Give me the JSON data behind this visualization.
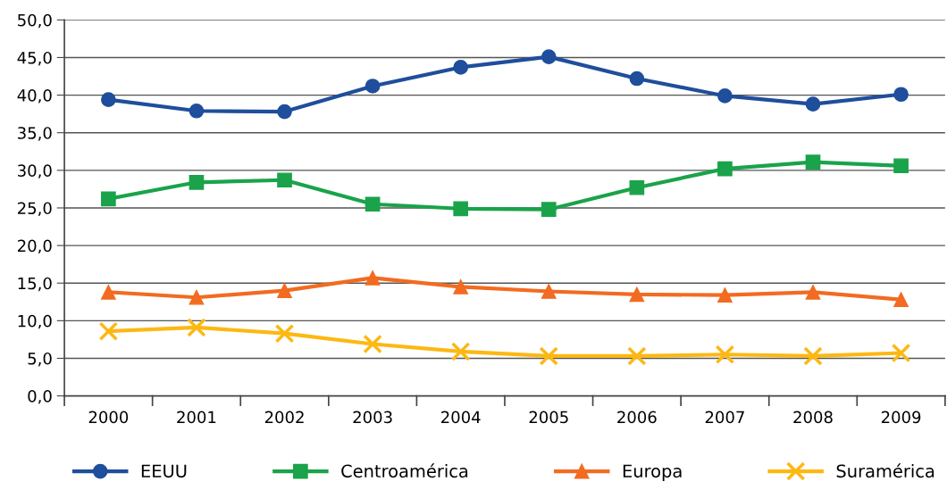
{
  "chart_data": {
    "type": "line",
    "categories": [
      "2000",
      "2001",
      "2002",
      "2003",
      "2004",
      "2005",
      "2006",
      "2007",
      "2008",
      "2009"
    ],
    "series": [
      {
        "name": "EEUU",
        "color": "#1f4e9c",
        "marker": "circle",
        "values": [
          39.4,
          37.9,
          37.8,
          41.2,
          43.7,
          45.1,
          42.2,
          39.9,
          38.8,
          40.1
        ]
      },
      {
        "name": "Centroamérica",
        "color": "#1aa34a",
        "marker": "square",
        "values": [
          26.2,
          28.4,
          28.7,
          25.5,
          24.9,
          24.8,
          27.7,
          30.2,
          31.1,
          30.6
        ]
      },
      {
        "name": "Europa",
        "color": "#f26b21",
        "marker": "triangle",
        "values": [
          13.8,
          13.1,
          14.0,
          15.7,
          14.5,
          13.9,
          13.5,
          13.4,
          13.8,
          12.8
        ]
      },
      {
        "name": "Suramérica",
        "color": "#fcb813",
        "marker": "cross",
        "values": [
          8.6,
          9.1,
          8.3,
          6.9,
          5.9,
          5.3,
          5.3,
          5.5,
          5.3,
          5.7
        ]
      }
    ],
    "ylim": [
      0,
      50
    ],
    "yticks": [
      {
        "value": 0,
        "label": "0,0"
      },
      {
        "value": 5,
        "label": "5,0"
      },
      {
        "value": 10,
        "label": "10,0"
      },
      {
        "value": 15,
        "label": "15,0"
      },
      {
        "value": 20,
        "label": "20,0"
      },
      {
        "value": 25,
        "label": "25,0"
      },
      {
        "value": 30,
        "label": "30,0"
      },
      {
        "value": 35,
        "label": "35,0"
      },
      {
        "value": 40,
        "label": "40,0"
      },
      {
        "value": 45,
        "label": "45,0"
      },
      {
        "value": 50,
        "label": "50,0"
      }
    ],
    "grid": "y",
    "legend": "bottom",
    "line_style": "solid"
  }
}
